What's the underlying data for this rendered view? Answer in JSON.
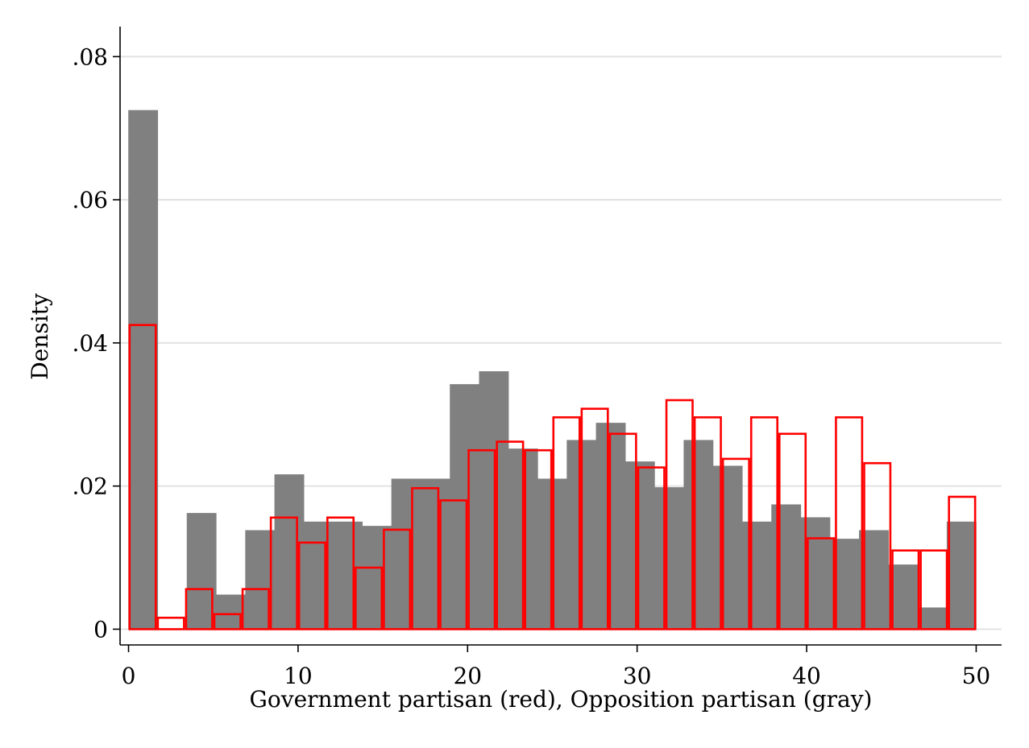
{
  "chart_data": {
    "type": "bar",
    "subtype": "overlaid-histogram",
    "xlabel": "Government partisan (red), Opposition partisan (gray)",
    "ylabel": "Density",
    "xlim": [
      -0.5,
      51.5
    ],
    "ylim": [
      -0.0022,
      0.0842
    ],
    "x_ticks": [
      0,
      10,
      20,
      30,
      40,
      50
    ],
    "y_ticks": [
      0,
      0.02,
      0.04,
      0.06,
      0.08
    ],
    "y_tick_labels": [
      "0",
      ".02",
      ".04",
      ".06",
      ".08"
    ],
    "grid": "horizontal",
    "legend": "none",
    "series": [
      {
        "color": "#808080",
        "style": "filled",
        "bin_width": 1.724,
        "bins_start": [
          0,
          1.724,
          3.448,
          5.172,
          6.897,
          8.621,
          10.345,
          12.069,
          13.793,
          15.517,
          17.241,
          18.966,
          20.69,
          22.414,
          24.138,
          25.862,
          27.586,
          29.31,
          31.034,
          32.759,
          34.483,
          36.207,
          37.931,
          39.655,
          41.379,
          43.103,
          44.828,
          46.552,
          48.276
        ],
        "values": [
          0.0725,
          0,
          0.0162,
          0.0048,
          0.0138,
          0.0216,
          0.015,
          0.015,
          0.0144,
          0.021,
          0.021,
          0.0342,
          0.036,
          0.0252,
          0.021,
          0.0264,
          0.0288,
          0.0234,
          0.0198,
          0.0264,
          0.0228,
          0.015,
          0.0174,
          0.0156,
          0.0126,
          0.0138,
          0.009,
          0.003,
          0.015
        ]
      },
      {
        "color": "#ff0000",
        "style": "outline",
        "bin_width": 1.667,
        "bins_start": [
          0,
          1.667,
          3.333,
          5.0,
          6.667,
          8.333,
          10.0,
          11.667,
          13.333,
          15.0,
          16.667,
          18.333,
          20.0,
          21.667,
          23.333,
          25.0,
          26.667,
          28.333,
          30.0,
          31.667,
          33.333,
          35.0,
          36.667,
          38.333,
          40.0,
          41.667,
          43.333,
          45.0,
          46.667,
          48.333
        ],
        "values": [
          0.0425,
          0.0016,
          0.0056,
          0.0021,
          0.0056,
          0.0156,
          0.0121,
          0.0156,
          0.0086,
          0.0139,
          0.0197,
          0.018,
          0.025,
          0.0262,
          0.025,
          0.0296,
          0.0308,
          0.0273,
          0.0226,
          0.032,
          0.0296,
          0.0238,
          0.0296,
          0.0273,
          0.0127,
          0.0296,
          0.0232,
          0.011,
          0.011,
          0.0185
        ]
      }
    ]
  }
}
